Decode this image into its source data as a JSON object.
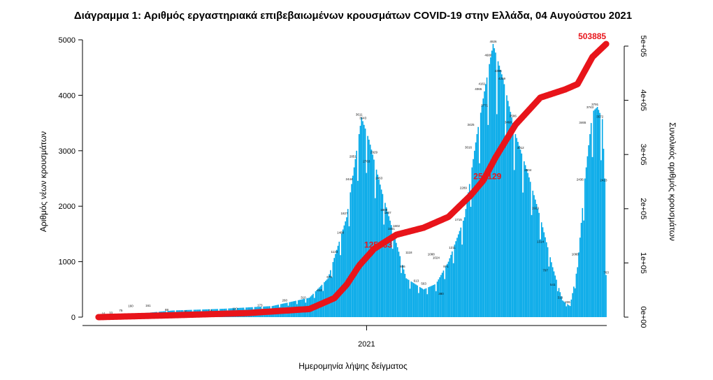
{
  "chart_data": {
    "type": "bar",
    "title": "Διάγραμμα 1: Αριθμός εργαστηριακά επιβεβαιωμένων κρουσμάτων COVID-19 στην Ελλάδα, 04 Αυγούστου 2021",
    "xlabel": "Ημερομηνία λήψης δείγματος",
    "ylabel": "Αριθμός νέων κρουσμάτων",
    "y2label": "Συνολικός αριθμός κρουσμάτων",
    "x_tick_labels": [
      "2021"
    ],
    "y_ticks": [
      0,
      1000,
      2000,
      3000,
      4000,
      5000
    ],
    "y2_tick_labels": [
      "0e+00",
      "1e+05",
      "2e+05",
      "3e+05",
      "4e+05",
      "5e+05"
    ],
    "ylim": [
      0,
      5000
    ],
    "y2lim": [
      0,
      550000
    ],
    "colors": {
      "bars": "#00a8e8",
      "cumulative": "#e8141a"
    },
    "daily_series": {
      "name": "",
      "anchors": [
        {
          "day": 0,
          "value": 20
        },
        {
          "day": 30,
          "value": 60
        },
        {
          "day": 60,
          "value": 120
        },
        {
          "day": 100,
          "value": 150
        },
        {
          "day": 140,
          "value": 200
        },
        {
          "day": 170,
          "value": 350
        },
        {
          "day": 185,
          "value": 700
        },
        {
          "day": 200,
          "value": 1800
        },
        {
          "day": 208,
          "value": 3000
        },
        {
          "day": 212,
          "value": 3600
        },
        {
          "day": 218,
          "value": 3200
        },
        {
          "day": 228,
          "value": 2300
        },
        {
          "day": 238,
          "value": 1500
        },
        {
          "day": 248,
          "value": 700
        },
        {
          "day": 262,
          "value": 500
        },
        {
          "day": 272,
          "value": 600
        },
        {
          "day": 282,
          "value": 1000
        },
        {
          "day": 295,
          "value": 1800
        },
        {
          "day": 305,
          "value": 3300
        },
        {
          "day": 312,
          "value": 4200
        },
        {
          "day": 318,
          "value": 4926
        },
        {
          "day": 326,
          "value": 4300
        },
        {
          "day": 336,
          "value": 3300
        },
        {
          "day": 346,
          "value": 2600
        },
        {
          "day": 356,
          "value": 1800
        },
        {
          "day": 366,
          "value": 900
        },
        {
          "day": 374,
          "value": 300
        },
        {
          "day": 380,
          "value": 200
        },
        {
          "day": 386,
          "value": 900
        },
        {
          "day": 392,
          "value": 2500
        },
        {
          "day": 398,
          "value": 3700
        },
        {
          "day": 402,
          "value": 3791
        },
        {
          "day": 406,
          "value": 3572
        },
        {
          "day": 408,
          "value": 2500
        },
        {
          "day": 409,
          "value": 760
        }
      ],
      "weekly_dip": 0.78
    },
    "labeled_bars": [
      {
        "day": 4,
        "label": "16"
      },
      {
        "day": 10,
        "label": "33"
      },
      {
        "day": 18,
        "label": "75"
      },
      {
        "day": 26,
        "label": "160"
      },
      {
        "day": 40,
        "label": "161"
      },
      {
        "day": 55,
        "label": "88"
      },
      {
        "day": 70,
        "label": "56"
      },
      {
        "day": 90,
        "label": "74"
      },
      {
        "day": 110,
        "label": "110"
      },
      {
        "day": 130,
        "label": "173"
      },
      {
        "day": 150,
        "label": "260"
      },
      {
        "day": 165,
        "label": "310"
      },
      {
        "day": 178,
        "label": "444"
      },
      {
        "day": 186,
        "label": "679"
      },
      {
        "day": 190,
        "label": "1133"
      },
      {
        "day": 195,
        "label": "1480"
      },
      {
        "day": 198,
        "label": "1827"
      },
      {
        "day": 202,
        "label": "2444"
      },
      {
        "day": 205,
        "label": "2851"
      },
      {
        "day": 210,
        "label": "3611"
      },
      {
        "day": 213,
        "label": "3543"
      },
      {
        "day": 216,
        "label": "2763"
      },
      {
        "day": 222,
        "label": "2929"
      },
      {
        "day": 226,
        "label": "2463"
      },
      {
        "day": 230,
        "label": "1888"
      },
      {
        "day": 233,
        "label": "1837"
      },
      {
        "day": 236,
        "label": "1551"
      },
      {
        "day": 240,
        "label": "1602"
      },
      {
        "day": 245,
        "label": "866"
      },
      {
        "day": 250,
        "label": "1118"
      },
      {
        "day": 256,
        "label": "613"
      },
      {
        "day": 262,
        "label": "563"
      },
      {
        "day": 268,
        "label": "1088"
      },
      {
        "day": 272,
        "label": "1024"
      },
      {
        "day": 276,
        "label": "380"
      },
      {
        "day": 280,
        "label": "871"
      },
      {
        "day": 285,
        "label": "1211"
      },
      {
        "day": 290,
        "label": "1715"
      },
      {
        "day": 294,
        "label": "2289"
      },
      {
        "day": 298,
        "label": "3016"
      },
      {
        "day": 300,
        "label": "3425"
      },
      {
        "day": 306,
        "label": "4065"
      },
      {
        "day": 309,
        "label": "4161"
      },
      {
        "day": 311,
        "label": "3771"
      },
      {
        "day": 314,
        "label": "4680"
      },
      {
        "day": 318,
        "label": "4926"
      },
      {
        "day": 322,
        "label": "4396"
      },
      {
        "day": 325,
        "label": "4259"
      },
      {
        "day": 330,
        "label": "3468"
      },
      {
        "day": 334,
        "label": "3586"
      },
      {
        "day": 340,
        "label": "3012"
      },
      {
        "day": 346,
        "label": "2604"
      },
      {
        "day": 352,
        "label": "1923"
      },
      {
        "day": 356,
        "label": "1314"
      },
      {
        "day": 360,
        "label": "797"
      },
      {
        "day": 366,
        "label": "541"
      },
      {
        "day": 372,
        "label": "310"
      },
      {
        "day": 378,
        "label": "226"
      },
      {
        "day": 384,
        "label": "1088"
      },
      {
        "day": 388,
        "label": "2436"
      },
      {
        "day": 390,
        "label": "3465"
      },
      {
        "day": 396,
        "label": "3743"
      },
      {
        "day": 400,
        "label": "3791"
      },
      {
        "day": 404,
        "label": "3572"
      },
      {
        "day": 407,
        "label": "2423"
      },
      {
        "day": 409,
        "label": "763"
      }
    ],
    "cumulative_series": {
      "name": "",
      "anchors": [
        {
          "day": 0,
          "value": 0
        },
        {
          "day": 60,
          "value": 3500
        },
        {
          "day": 120,
          "value": 7500
        },
        {
          "day": 170,
          "value": 15000
        },
        {
          "day": 190,
          "value": 35000
        },
        {
          "day": 200,
          "value": 60000
        },
        {
          "day": 210,
          "value": 95000
        },
        {
          "day": 222,
          "value": 125833
        },
        {
          "day": 240,
          "value": 152000
        },
        {
          "day": 262,
          "value": 165000
        },
        {
          "day": 282,
          "value": 185000
        },
        {
          "day": 300,
          "value": 225000
        },
        {
          "day": 310,
          "value": 252129
        },
        {
          "day": 320,
          "value": 295000
        },
        {
          "day": 336,
          "value": 355000
        },
        {
          "day": 356,
          "value": 405000
        },
        {
          "day": 376,
          "value": 420000
        },
        {
          "day": 386,
          "value": 430000
        },
        {
          "day": 398,
          "value": 480000
        },
        {
          "day": 409,
          "value": 503885
        }
      ]
    },
    "annotations": [
      {
        "day": 222,
        "value": 125833,
        "label": "125833"
      },
      {
        "day": 310,
        "value": 252129,
        "label": "252129"
      },
      {
        "day": 409,
        "value": 503885,
        "label": "503885"
      }
    ],
    "total_days": 410
  }
}
